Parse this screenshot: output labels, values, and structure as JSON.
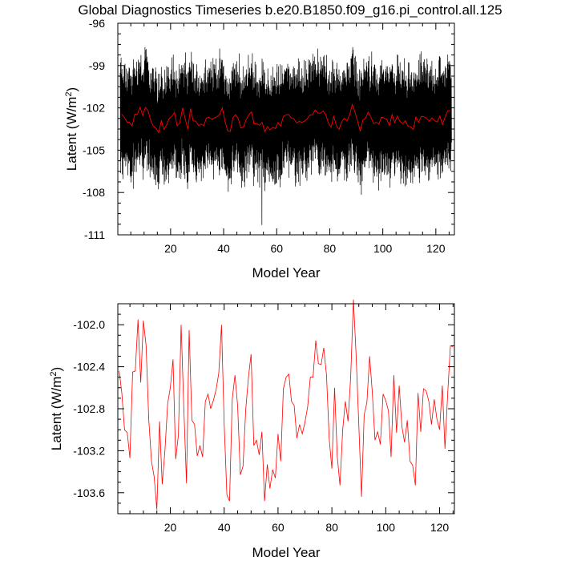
{
  "title": "Global Diagnostics Timeseries b.e20.B1850.f09_g16.pi_control.all.125",
  "colors": {
    "monthly": "#000000",
    "annual": "#ff0000",
    "axes": "#000000"
  },
  "chart_data": [
    {
      "type": "line",
      "xlabel": "Model Year",
      "ylabel_main": "Latent (W/m",
      "ylabel_sup": "2",
      "ylabel_end": ")",
      "xlim": [
        0.1,
        127
      ],
      "ylim": [
        -111,
        -96
      ],
      "xticks": [
        20,
        40,
        60,
        80,
        100,
        120
      ],
      "yticks": [
        -111,
        -108,
        -105,
        -102,
        -99,
        -96
      ],
      "grid": false,
      "series": [
        {
          "id": "monthly",
          "style": "oscillation",
          "samples_per_year": 12,
          "values_by_year_mean_and_amplitude": "see annual series; monthly values oscillate about the annual mean with typical range -108 to -99",
          "min_value": -110.3,
          "min_at_year": 54,
          "typical_low": -107.5,
          "typical_high": -99.0
        },
        {
          "id": "annual",
          "style": "line",
          "ref": "chart_data.1.series.0"
        }
      ]
    },
    {
      "type": "line",
      "xlabel": "Model Year",
      "ylabel_main": "Latent (W/m",
      "ylabel_sup": "2",
      "ylabel_end": ")",
      "xlim": [
        0.5,
        125.5
      ],
      "ylim": [
        -103.8,
        -101.8
      ],
      "xticks": [
        20,
        40,
        60,
        80,
        100,
        120
      ],
      "yticks": [
        -103.6,
        -103.2,
        -102.8,
        -102.4,
        -102.0
      ],
      "ytick_labels": [
        "-103.6",
        "-103.2",
        "-102.8",
        "-102.4",
        "-102.0"
      ],
      "grid": false,
      "series": [
        {
          "id": "annual",
          "x_start": 1,
          "x_step": 1,
          "values": [
            -102.44,
            -102.65,
            -103.0,
            -103.03,
            -103.27,
            -102.45,
            -102.44,
            -101.95,
            -102.55,
            -101.96,
            -102.2,
            -102.9,
            -103.3,
            -103.45,
            -103.76,
            -102.92,
            -103.52,
            -103.2,
            -102.75,
            -102.6,
            -102.33,
            -103.28,
            -103.05,
            -102.0,
            -102.78,
            -103.51,
            -102.05,
            -102.91,
            -102.95,
            -103.25,
            -103.15,
            -103.26,
            -102.73,
            -102.66,
            -102.8,
            -102.72,
            -102.62,
            -102.46,
            -102.0,
            -102.94,
            -103.62,
            -103.68,
            -102.71,
            -102.48,
            -102.77,
            -103.43,
            -103.35,
            -102.81,
            -102.5,
            -102.28,
            -103.15,
            -103.1,
            -103.24,
            -103.02,
            -103.68,
            -103.33,
            -103.56,
            -103.38,
            -103.46,
            -103.04,
            -103.3,
            -102.61,
            -102.5,
            -102.47,
            -102.73,
            -102.77,
            -103.08,
            -102.95,
            -103.04,
            -102.93,
            -102.78,
            -102.5,
            -102.5,
            -102.15,
            -102.37,
            -102.38,
            -102.22,
            -102.48,
            -103.09,
            -103.37,
            -102.6,
            -103.25,
            -103.53,
            -103.0,
            -102.73,
            -102.92,
            -102.49,
            -101.76,
            -102.3,
            -102.95,
            -103.64,
            -102.86,
            -102.74,
            -102.3,
            -102.64,
            -103.1,
            -103.02,
            -103.14,
            -102.66,
            -102.72,
            -102.82,
            -103.26,
            -102.48,
            -103.03,
            -102.58,
            -102.97,
            -103.12,
            -102.91,
            -103.3,
            -103.34,
            -103.53,
            -102.65,
            -103.02,
            -102.61,
            -102.63,
            -102.73,
            -102.95,
            -102.71,
            -102.9,
            -103.0,
            -102.58,
            -103.18,
            -102.66,
            -102.2,
            -102.21
          ]
        }
      ]
    }
  ]
}
